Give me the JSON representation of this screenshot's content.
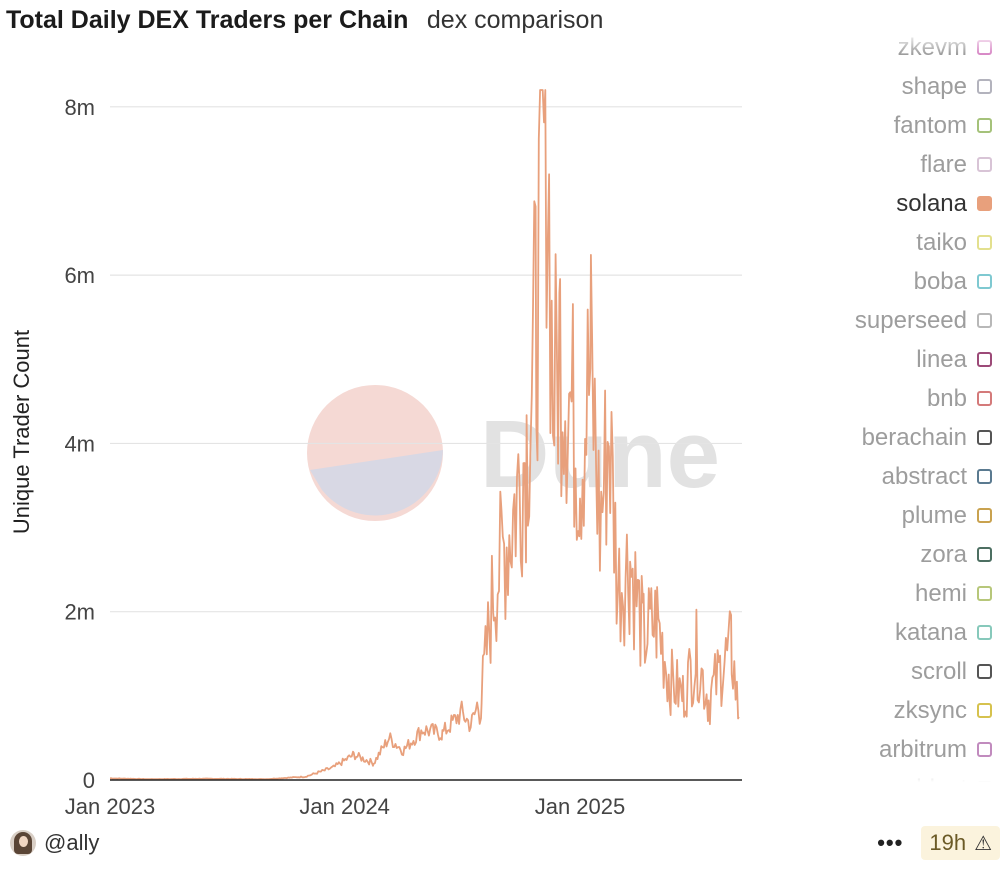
{
  "header": {
    "title": "Total Daily DEX Traders per Chain",
    "subtitle": "dex comparison"
  },
  "legend": {
    "items": [
      {
        "label": "zkevm",
        "color": "#d889c6",
        "active": false
      },
      {
        "label": "shape",
        "color": "#b3b3bd",
        "active": false
      },
      {
        "label": "fantom",
        "color": "#a5c27a",
        "active": false
      },
      {
        "label": "flare",
        "color": "#d8c4d6",
        "active": false
      },
      {
        "label": "solana",
        "color": "#e8a07c",
        "active": true
      },
      {
        "label": "taiko",
        "color": "#e3e08e",
        "active": false
      },
      {
        "label": "boba",
        "color": "#7fc9d1",
        "active": false
      },
      {
        "label": "superseed",
        "color": "#b8b8b8",
        "active": false
      },
      {
        "label": "linea",
        "color": "#9c4a78",
        "active": false
      },
      {
        "label": "bnb",
        "color": "#d47a7a",
        "active": false
      },
      {
        "label": "berachain",
        "color": "#555555",
        "active": false
      },
      {
        "label": "abstract",
        "color": "#5a7a90",
        "active": false
      },
      {
        "label": "plume",
        "color": "#c9a24f",
        "active": false
      },
      {
        "label": "zora",
        "color": "#4d6f62",
        "active": false
      },
      {
        "label": "hemi",
        "color": "#b7c77a",
        "active": false
      },
      {
        "label": "katana",
        "color": "#87c9bb",
        "active": false
      },
      {
        "label": "scroll",
        "color": "#555555",
        "active": false
      },
      {
        "label": "zksync",
        "color": "#d6c24e",
        "active": false
      },
      {
        "label": "arbitrum",
        "color": "#c18bbe",
        "active": false
      },
      {
        "label": "blast",
        "color": "#888888",
        "active": false
      }
    ]
  },
  "watermark": {
    "text": "Dune"
  },
  "footer": {
    "username": "@ally",
    "more": "•••",
    "age": "19h",
    "warning_icon": "⚠"
  },
  "chart_data": {
    "type": "line",
    "title": "Total Daily DEX Traders per Chain",
    "subtitle": "dex comparison",
    "xlabel": "",
    "ylabel": "Unique Trader Count",
    "x_ticks": [
      "Jan 2023",
      "Jan 2024",
      "Jan 2025"
    ],
    "y_ticks": [
      "0",
      "2m",
      "4m",
      "6m",
      "8m"
    ],
    "ylim": [
      0,
      8200000
    ],
    "xlim": [
      "2023-01-01",
      "2025-09-10"
    ],
    "grid": true,
    "series": [
      {
        "name": "solana",
        "color": "#e8a07c",
        "x": [
          "2023-01-01",
          "2023-03-01",
          "2023-06-01",
          "2023-09-01",
          "2023-11-01",
          "2023-12-15",
          "2024-01-15",
          "2024-02-15",
          "2024-03-10",
          "2024-04-01",
          "2024-05-01",
          "2024-06-01",
          "2024-07-01",
          "2024-07-15",
          "2024-08-01",
          "2024-08-20",
          "2024-09-15",
          "2024-10-10",
          "2024-10-25",
          "2024-11-10",
          "2024-11-20",
          "2024-12-01",
          "2024-12-15",
          "2025-01-01",
          "2025-01-18",
          "2025-02-01",
          "2025-02-15",
          "2025-03-01",
          "2025-03-20",
          "2025-04-10",
          "2025-05-01",
          "2025-05-20",
          "2025-06-10",
          "2025-07-01",
          "2025-07-20",
          "2025-08-10",
          "2025-08-25",
          "2025-09-05"
        ],
        "values": [
          20000,
          10000,
          15000,
          10000,
          40000,
          150000,
          300000,
          200000,
          500000,
          350000,
          600000,
          550000,
          800000,
          650000,
          1000000,
          2300000,
          3000000,
          4000000,
          5500000,
          8100000,
          4500000,
          5200000,
          4600000,
          3800000,
          4900000,
          3000000,
          4200000,
          2300000,
          2600000,
          1700000,
          1900000,
          1200000,
          1000000,
          1500000,
          950000,
          1350000,
          1550000,
          750000
        ]
      }
    ]
  }
}
